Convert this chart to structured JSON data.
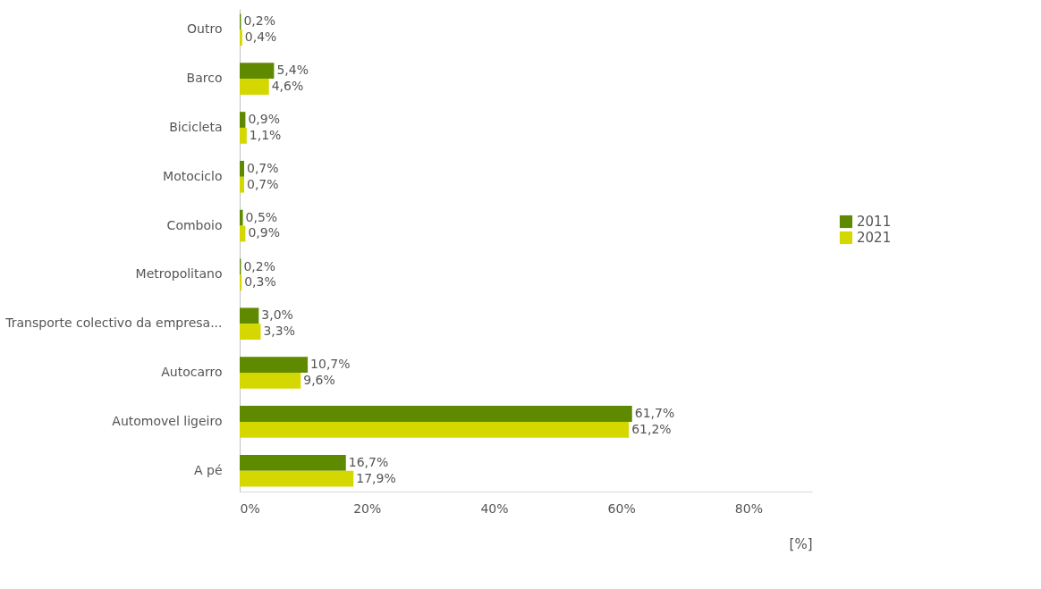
{
  "chart_data": {
    "type": "bar",
    "orientation": "horizontal",
    "xlabel": "[%]",
    "categories": [
      "Outro",
      "Barco",
      "Bicicleta",
      "Motociclo",
      "Comboio",
      "Metropolitano",
      "Transporte colectivo da empresa...",
      "Autocarro",
      "Automovel ligeiro",
      "A pé"
    ],
    "series": [
      {
        "name": "2011",
        "color": "#5f8a00",
        "values": [
          0.2,
          5.4,
          0.9,
          0.7,
          0.5,
          0.2,
          3.0,
          10.7,
          61.7,
          16.7
        ],
        "value_labels": [
          "0,2%",
          "5,4%",
          "0,9%",
          "0,7%",
          "0,5%",
          "0,2%",
          "3,0%",
          "10,7%",
          "61,7%",
          "16,7%"
        ]
      },
      {
        "name": "2021",
        "color": "#d4d800",
        "values": [
          0.4,
          4.6,
          1.1,
          0.7,
          0.9,
          0.3,
          3.3,
          9.6,
          61.2,
          17.9
        ],
        "value_labels": [
          "0,4%",
          "4,6%",
          "1,1%",
          "0,7%",
          "0,9%",
          "0,3%",
          "3,3%",
          "9,6%",
          "61,2%",
          "17,9%"
        ]
      }
    ],
    "xlim": [
      0,
      90
    ],
    "xticks": [
      {
        "value": 0,
        "label": "0%"
      },
      {
        "value": 20,
        "label": "20%"
      },
      {
        "value": 40,
        "label": "40%"
      },
      {
        "value": 60,
        "label": "60%"
      },
      {
        "value": 80,
        "label": "80%"
      }
    ],
    "grid": false,
    "legend": "right"
  }
}
